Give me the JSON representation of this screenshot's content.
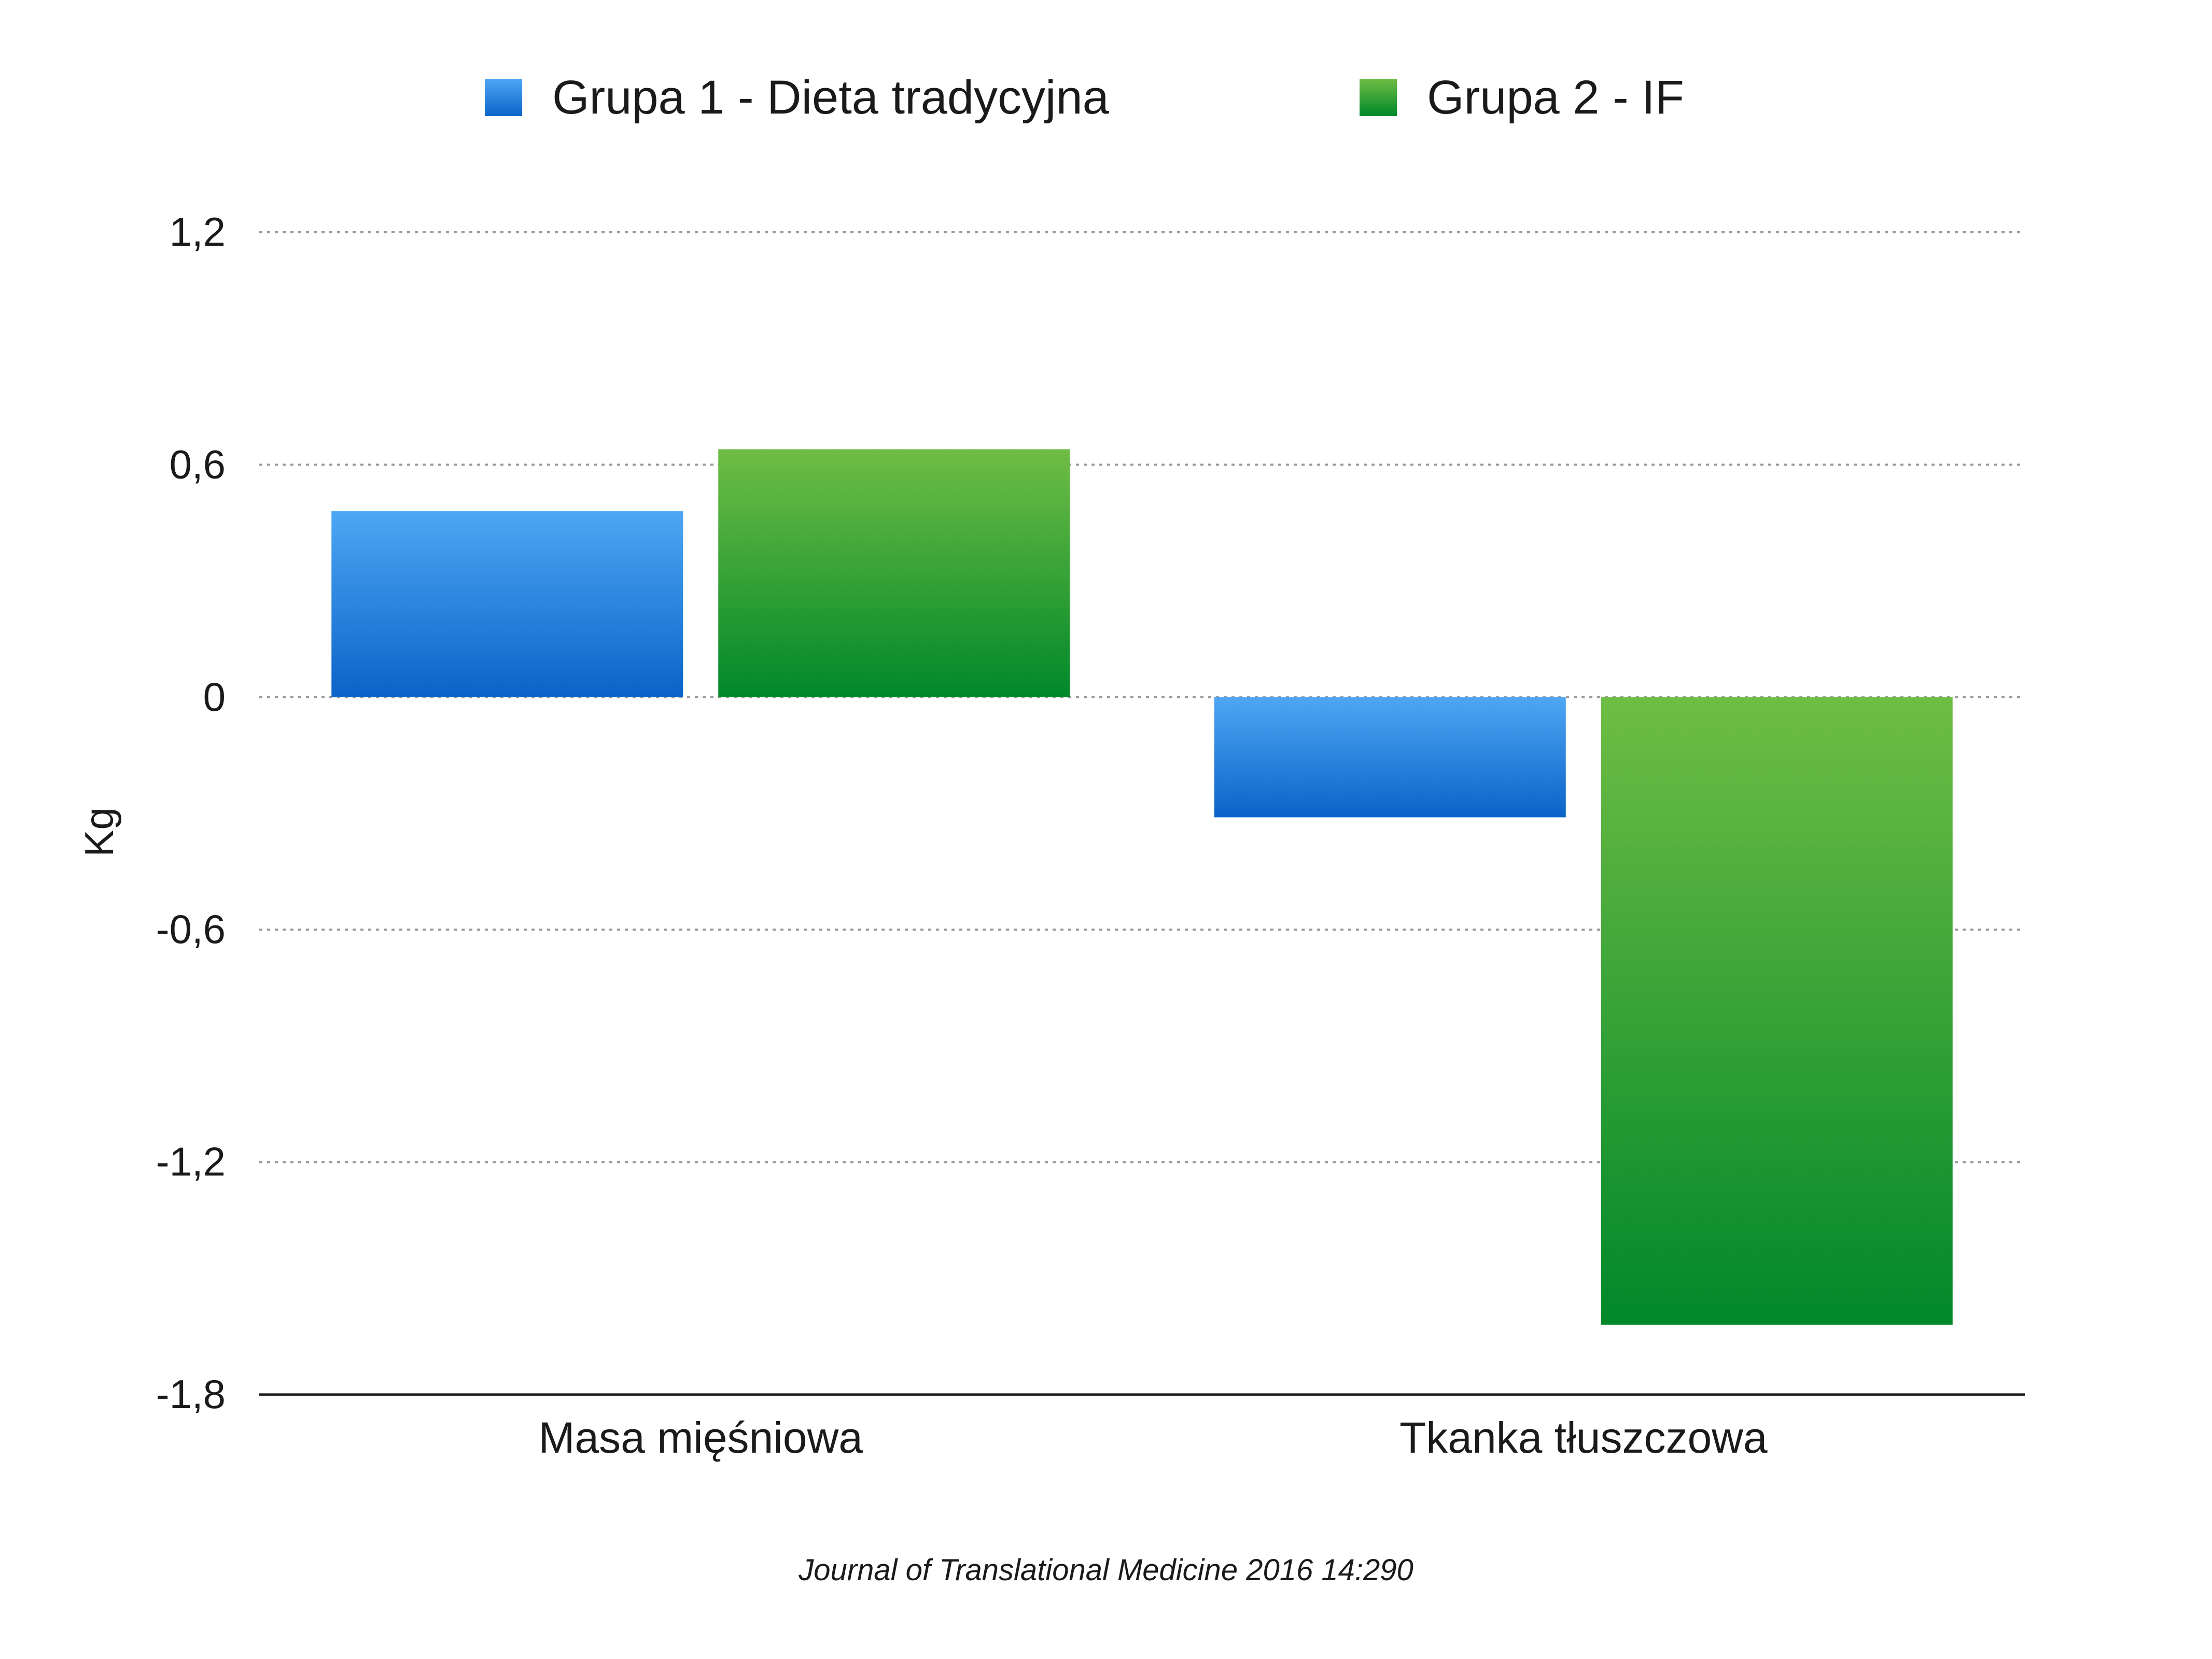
{
  "legend": {
    "series1": "Grupa 1 - Dieta tradycyjna",
    "series2": "Grupa 2 - IF"
  },
  "colors": {
    "series1_top": "#4ea6f4",
    "series1_bottom": "#0a64c8",
    "series2_top": "#6fbd44",
    "series2_bottom": "#00882a",
    "grid": "#9a9a9a",
    "axis": "#1a1a1a"
  },
  "source_note": "Journal of Translational Medicine 2016 14:290",
  "chart_data": {
    "type": "bar",
    "categories": [
      "Masa mięśniowa",
      "Tkanka tłuszczowa"
    ],
    "series": [
      {
        "name": "Grupa 1 - Dieta tradycyjna",
        "values": [
          0.48,
          -0.31
        ]
      },
      {
        "name": "Grupa 2 - IF",
        "values": [
          0.64,
          -1.62
        ]
      }
    ],
    "ylabel": "Kg",
    "ylim": [
      -1.8,
      1.2
    ],
    "yticks": [
      1.2,
      0.6,
      0,
      -0.6,
      -1.2,
      -1.8
    ],
    "ytick_labels": [
      "1,2",
      "0,6",
      "0",
      "-0,6",
      "-1,2",
      "-1,8"
    ],
    "grid": "horizontal dotted",
    "legend_position": "top"
  }
}
